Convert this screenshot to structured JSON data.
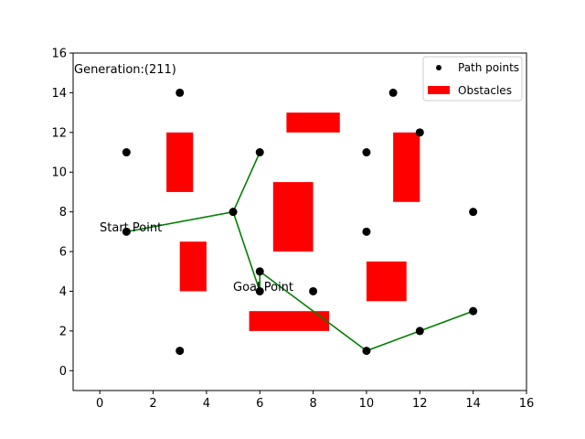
{
  "chart_data": {
    "type": "scatter",
    "title": "",
    "xlabel": "",
    "ylabel": "",
    "xlim": [
      -1,
      16
    ],
    "ylim": [
      -1,
      16
    ],
    "xticks": [
      0,
      2,
      4,
      6,
      8,
      10,
      12,
      14,
      16
    ],
    "yticks": [
      0,
      2,
      4,
      6,
      8,
      10,
      12,
      14,
      16
    ],
    "grid": false,
    "legend_position": "top-right",
    "legend": [
      {
        "label": "Path points",
        "marker": "dot"
      },
      {
        "label": "Obstacles",
        "marker": "rect"
      }
    ],
    "annotations": [
      {
        "text": "Generation:(211)",
        "x": -1,
        "y": 15
      },
      {
        "text": "Start Point",
        "x": 0,
        "y": 7
      },
      {
        "text": "Goal Point",
        "x": 5,
        "y": 4
      }
    ],
    "points": [
      {
        "x": 1,
        "y": 7
      },
      {
        "x": 1,
        "y": 11
      },
      {
        "x": 3,
        "y": 14
      },
      {
        "x": 3,
        "y": 1
      },
      {
        "x": 5,
        "y": 8
      },
      {
        "x": 6,
        "y": 11
      },
      {
        "x": 6,
        "y": 5
      },
      {
        "x": 6,
        "y": 4
      },
      {
        "x": 8,
        "y": 4
      },
      {
        "x": 10,
        "y": 11
      },
      {
        "x": 10,
        "y": 7
      },
      {
        "x": 10,
        "y": 1
      },
      {
        "x": 11,
        "y": 14
      },
      {
        "x": 12,
        "y": 12
      },
      {
        "x": 12,
        "y": 2
      },
      {
        "x": 14,
        "y": 8
      },
      {
        "x": 14,
        "y": 3
      }
    ],
    "obstacles": [
      {
        "x": 2.5,
        "y": 9,
        "w": 1,
        "h": 3
      },
      {
        "x": 3,
        "y": 4,
        "w": 1,
        "h": 2.5
      },
      {
        "x": 7,
        "y": 12,
        "w": 2,
        "h": 1
      },
      {
        "x": 6.5,
        "y": 6,
        "w": 1.5,
        "h": 3.5
      },
      {
        "x": 11,
        "y": 8.5,
        "w": 1,
        "h": 3.5
      },
      {
        "x": 10,
        "y": 3.5,
        "w": 1.5,
        "h": 2
      },
      {
        "x": 5.6,
        "y": 2,
        "w": 3,
        "h": 1
      }
    ],
    "path": [
      {
        "x": 1,
        "y": 7
      },
      {
        "x": 5,
        "y": 8
      },
      {
        "x": 6,
        "y": 11
      },
      {
        "x": 5,
        "y": 8
      },
      {
        "x": 6,
        "y": 4
      },
      {
        "x": 6,
        "y": 5
      },
      {
        "x": 10,
        "y": 1
      },
      {
        "x": 12,
        "y": 2
      },
      {
        "x": 14,
        "y": 3
      }
    ]
  },
  "colors": {
    "obstacle": "#ff0000",
    "path": "#008000",
    "point": "#000000"
  }
}
